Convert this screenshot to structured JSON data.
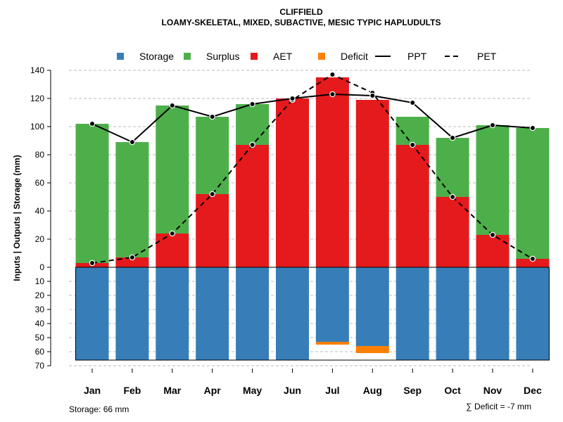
{
  "chart_data": {
    "type": "bar",
    "title": "CLIFFIELD",
    "subtitle": "LOAMY-SKELETAL, MIXED, SUBACTIVE, MESIC TYPIC HAPLUDULTS",
    "ylabel": "Inputs | Outputs | Storage    (mm)",
    "categories": [
      "Jan",
      "Feb",
      "Mar",
      "Apr",
      "May",
      "Jun",
      "Jul",
      "Aug",
      "Sep",
      "Oct",
      "Nov",
      "Dec"
    ],
    "upper_ylim": [
      0,
      140
    ],
    "upper_ticks": [
      "0",
      "20",
      "40",
      "60",
      "80",
      "100",
      "120",
      "140"
    ],
    "lower_ylim": [
      0,
      70
    ],
    "lower_ticks": [
      "10",
      "20",
      "30",
      "40",
      "50",
      "60",
      "70"
    ],
    "legend": [
      {
        "label": "Storage",
        "color": "#377EB8",
        "kind": "square"
      },
      {
        "label": "Surplus",
        "color": "#4DAF4A",
        "kind": "square"
      },
      {
        "label": "AET",
        "color": "#E41A1C",
        "kind": "square"
      },
      {
        "label": "Deficit",
        "color": "#FF7F00",
        "kind": "square"
      },
      {
        "label": "PPT",
        "color": "#000000",
        "kind": "solid"
      },
      {
        "label": "PET",
        "color": "#000000",
        "kind": "dashed"
      }
    ],
    "series": [
      {
        "name": "AET",
        "color": "#E41A1C",
        "values": [
          3,
          7,
          24,
          52,
          87,
          120,
          135,
          119,
          87,
          50,
          23,
          6
        ]
      },
      {
        "name": "Surplus",
        "color": "#4DAF4A",
        "values": [
          99,
          82,
          91,
          55,
          29,
          0,
          0,
          0,
          20,
          42,
          78,
          93
        ]
      },
      {
        "name": "Storage",
        "color": "#377EB8",
        "values": [
          66,
          66,
          66,
          66,
          66,
          66,
          53,
          56,
          66,
          66,
          66,
          66
        ]
      },
      {
        "name": "Deficit",
        "color": "#FF7F00",
        "values": [
          0,
          0,
          0,
          0,
          0,
          0,
          2,
          5,
          0,
          0,
          0,
          0
        ]
      },
      {
        "name": "PPT",
        "color": "#000000",
        "values": [
          102,
          89,
          115,
          107,
          116,
          120,
          123,
          122,
          117,
          92,
          101,
          99
        ]
      },
      {
        "name": "PET",
        "color": "#000000",
        "values": [
          3,
          7,
          24,
          52,
          87,
          119,
          137,
          124,
          87,
          50,
          23,
          6
        ]
      }
    ],
    "storage_capacity": 66,
    "footer_storage": "Storage: 66 mm",
    "footer_deficit": "∑ Deficit = -7 mm"
  }
}
